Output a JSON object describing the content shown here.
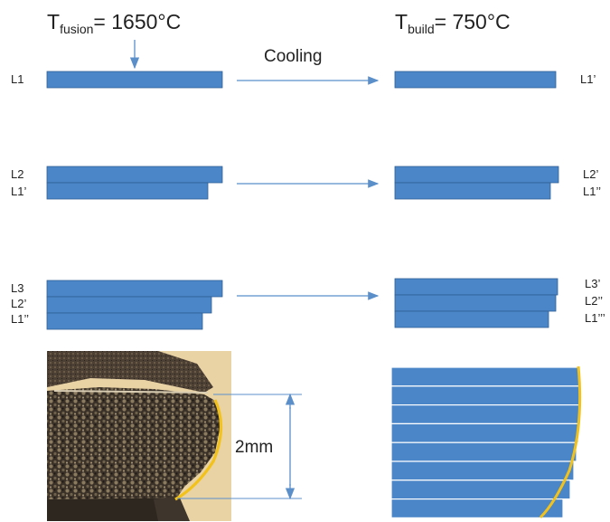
{
  "header": {
    "left_t": "T",
    "left_sub": "fusion",
    "left_value": "= 1650°C",
    "right_t": "T",
    "right_sub": "build",
    "right_value": "= 750°C"
  },
  "cooling_label": "Cooling",
  "rows": [
    {
      "left": [
        "L1"
      ],
      "right": [
        "L1’"
      ]
    },
    {
      "left": [
        "L2",
        "L1’"
      ],
      "right": [
        "L2’",
        "L1’’"
      ]
    },
    {
      "left": [
        "L3",
        "L2’",
        "L1’’"
      ],
      "right": [
        "L3’",
        "L2’’",
        "L1’’’"
      ]
    }
  ],
  "dimension_label": "2mm",
  "colors": {
    "layer_fill": "#4a86c8",
    "layer_stroke": "#2f5f95",
    "arrow": "#5b8fca",
    "edge_yellow": "#f2c21b",
    "photo_bg": "#e9d2a4"
  }
}
